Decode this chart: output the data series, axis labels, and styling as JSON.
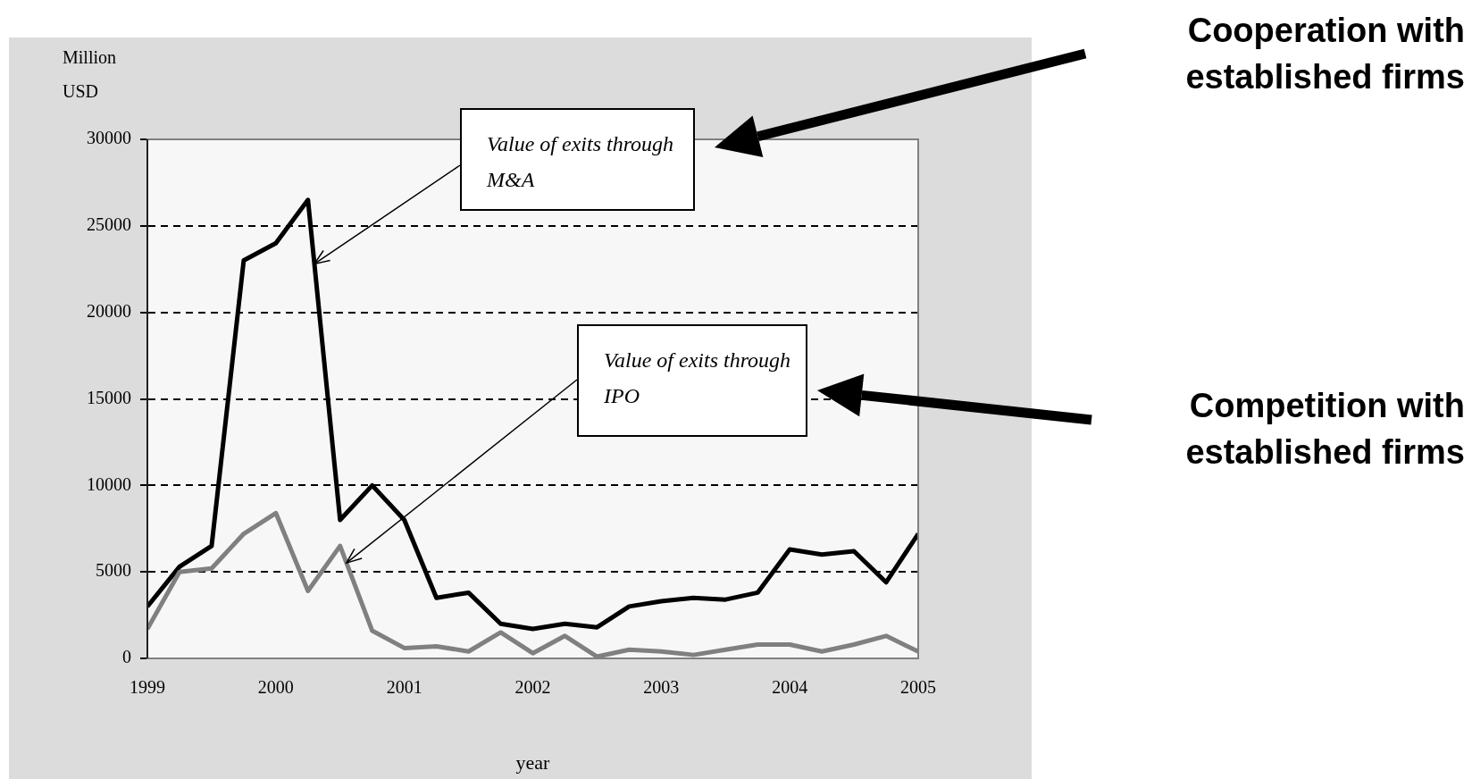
{
  "chart_data": {
    "type": "line",
    "ylabel": "Million USD",
    "xlabel": "year",
    "x": [
      1999,
      1999.25,
      1999.5,
      1999.75,
      2000,
      2000.25,
      2000.5,
      2000.75,
      2001,
      2001.25,
      2001.5,
      2001.75,
      2002,
      2002.25,
      2002.5,
      2002.75,
      2003,
      2003.25,
      2003.5,
      2003.75,
      2004,
      2004.25,
      2004.5,
      2004.75,
      2005
    ],
    "series": [
      {
        "color": "#000000",
        "values": [
          3000,
          5300,
          6500,
          23000,
          24000,
          26500,
          8000,
          10000,
          8000,
          3500,
          3800,
          2000,
          1700,
          2000,
          1800,
          3000,
          3300,
          3500,
          3400,
          3800,
          6300,
          6000,
          6200,
          4400,
          7200
        ]
      },
      {
        "color": "#808080",
        "values": [
          1700,
          5000,
          5200,
          7200,
          8400,
          3900,
          6500,
          1600,
          600,
          700,
          400,
          1500,
          300,
          1300,
          100,
          500,
          400,
          200,
          500,
          800,
          800,
          400,
          800,
          1300,
          400
        ]
      }
    ],
    "xlim": [
      1999,
      2005
    ],
    "xticks": [
      1999,
      2000,
      2001,
      2002,
      2003,
      2004,
      2005
    ],
    "ylim": [
      0,
      30000
    ],
    "yticks": [
      0,
      5000,
      10000,
      15000,
      20000,
      25000,
      30000
    ],
    "grid": "y",
    "legend": false,
    "marker": "none",
    "line_style": "solid",
    "annotations": [
      {
        "text": "Value of  exits through M&A",
        "x": 2000.3,
        "y": 22800
      },
      {
        "text": "Value of  exits through IPO",
        "x": 2000.55,
        "y": 5520
      },
      "Cooperation with established firms",
      "Competition with established firms"
    ]
  }
}
